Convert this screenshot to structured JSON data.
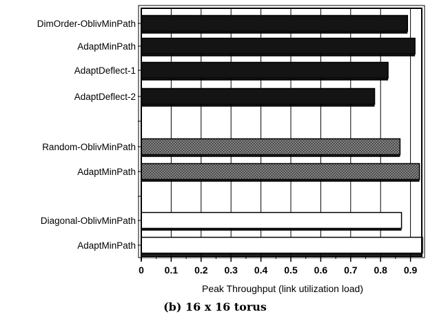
{
  "chart_data": {
    "type": "bar",
    "orientation": "horizontal",
    "categories": [
      "DimOrder-OblivMinPath",
      "AdaptMinPath",
      "AdaptDeflect-1",
      "AdaptDeflect-2",
      "Random-OblivMinPath",
      "AdaptMinPath",
      "Diagonal-OblivMinPath",
      "AdaptMinPath"
    ],
    "values": [
      0.89,
      0.915,
      0.825,
      0.78,
      0.865,
      0.93,
      0.87,
      0.94
    ],
    "groups": [
      {
        "pattern": "dimension-order",
        "fill": "solid-black",
        "bars": [
          0,
          1,
          2,
          3
        ]
      },
      {
        "pattern": "random",
        "fill": "dark-stipple",
        "bars": [
          4,
          5
        ]
      },
      {
        "pattern": "diagonal",
        "fill": "white",
        "bars": [
          6,
          7
        ]
      }
    ],
    "xlabel": "Peak Throughput (link utilization load)",
    "xticks": [
      "0",
      "0.1",
      "0.2",
      "0.3",
      "0.4",
      "0.5",
      "0.6",
      "0.7",
      "0.8",
      "0.9"
    ],
    "xlim": [
      0,
      0.95
    ],
    "grid": true,
    "caption": "(b) 16 x 16 torus"
  },
  "colors": {
    "solid": "#141414",
    "stipple": "#5a5a5a",
    "open": "#ffffff",
    "grid": "#000000"
  }
}
